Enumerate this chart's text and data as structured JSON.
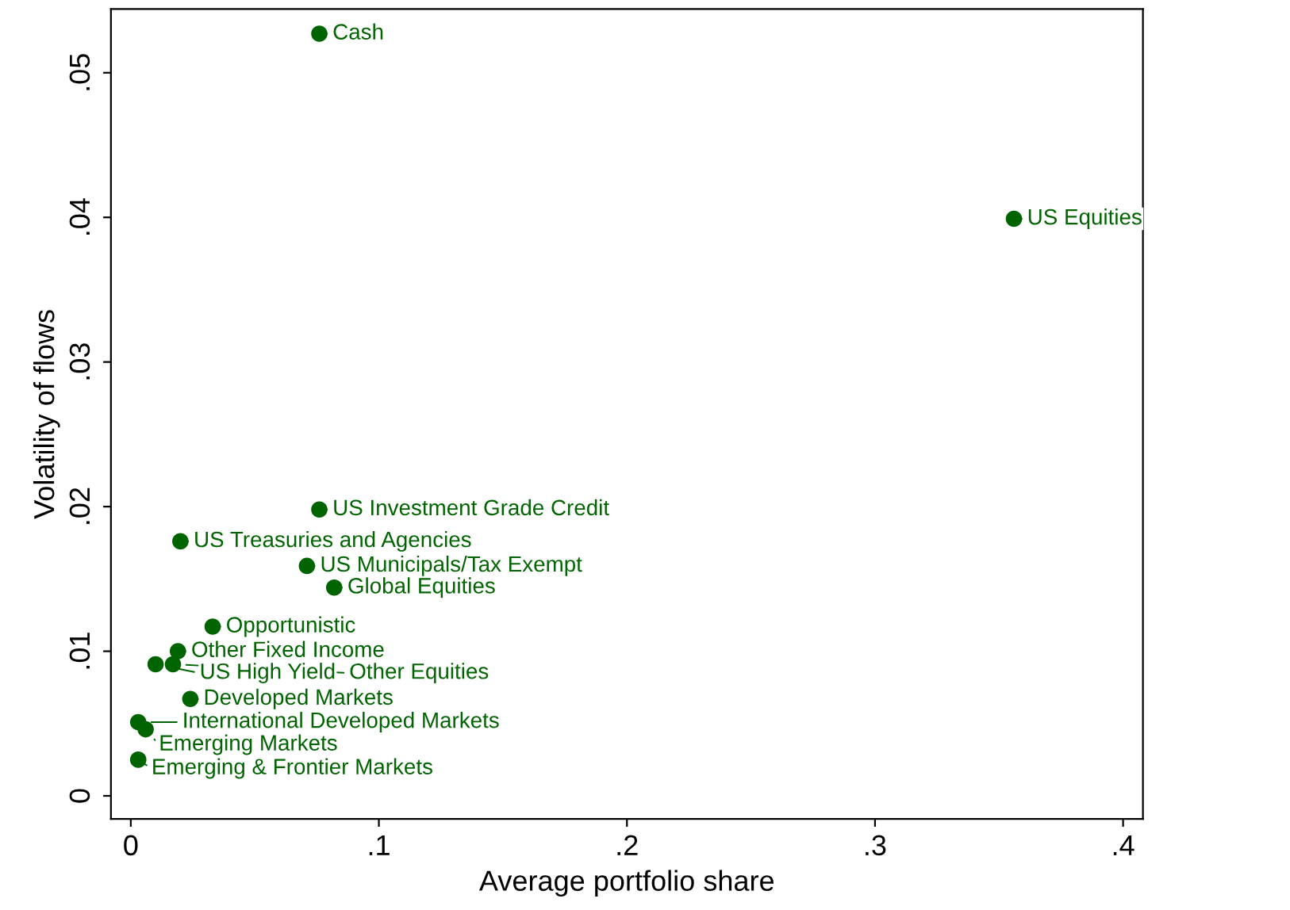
{
  "chart_data": {
    "type": "scatter",
    "xlabel": "Average portfolio share",
    "ylabel": "Volatility of flows",
    "series": [
      {
        "color": "#006400",
        "x": [
          0.076,
          0.356,
          0.076,
          0.02,
          0.071,
          0.082,
          0.033,
          0.019,
          0.01,
          0.017,
          0.024,
          0.003,
          0.006,
          0.003
        ],
        "values": [
          0.0527,
          0.0399,
          0.0198,
          0.0176,
          0.0159,
          0.0144,
          0.0117,
          0.01,
          0.0091,
          0.0091,
          0.0067,
          0.0051,
          0.0046,
          0.0025
        ]
      }
    ],
    "annotations": [
      {
        "text": "Cash",
        "x": 0.076,
        "y": 0.0527
      },
      {
        "text": "US Equities",
        "x": 0.356,
        "y": 0.0399
      },
      {
        "text": "US Investment Grade Credit",
        "x": 0.076,
        "y": 0.0198
      },
      {
        "text": "US Treasuries and Agencies",
        "x": 0.02,
        "y": 0.0176
      },
      {
        "text": "US Municipals/Tax Exempt",
        "x": 0.071,
        "y": 0.0159
      },
      {
        "text": "Global Equities",
        "x": 0.082,
        "y": 0.0144
      },
      {
        "text": "Opportunistic",
        "x": 0.033,
        "y": 0.0117
      },
      {
        "text": "Other Fixed Income",
        "x": 0.019,
        "y": 0.01
      },
      {
        "text": "US High Yield",
        "x": 0.01,
        "y": 0.0091
      },
      {
        "text": "Other Equities",
        "x": 0.017,
        "y": 0.0091
      },
      {
        "text": "Developed Markets",
        "x": 0.024,
        "y": 0.0067
      },
      {
        "text": "International Developed Markets",
        "x": 0.003,
        "y": 0.0051
      },
      {
        "text": "Emerging Markets",
        "x": 0.006,
        "y": 0.0046
      },
      {
        "text": "Emerging & Frontier Markets",
        "x": 0.003,
        "y": 0.0025
      }
    ],
    "marker": "circle",
    "grid": false,
    "legend": false,
    "xlim": [
      -0.008,
      0.408
    ],
    "ylim": [
      -0.0016,
      0.0544
    ],
    "xticks": [
      0,
      {
        "value": 0.1,
        "label": ".1"
      },
      {
        "value": 0.2,
        "label": ".2"
      },
      {
        "value": 0.3,
        "label": ".3"
      },
      {
        "value": 0.4,
        "label": ".4"
      }
    ],
    "yticks": [
      0,
      {
        "value": 0.01,
        "label": ".01"
      },
      {
        "value": 0.02,
        "label": ".02"
      },
      {
        "value": 0.03,
        "label": ".03"
      },
      {
        "value": 0.04,
        "label": ".04"
      },
      {
        "value": 0.05,
        "label": ".05"
      }
    ]
  }
}
